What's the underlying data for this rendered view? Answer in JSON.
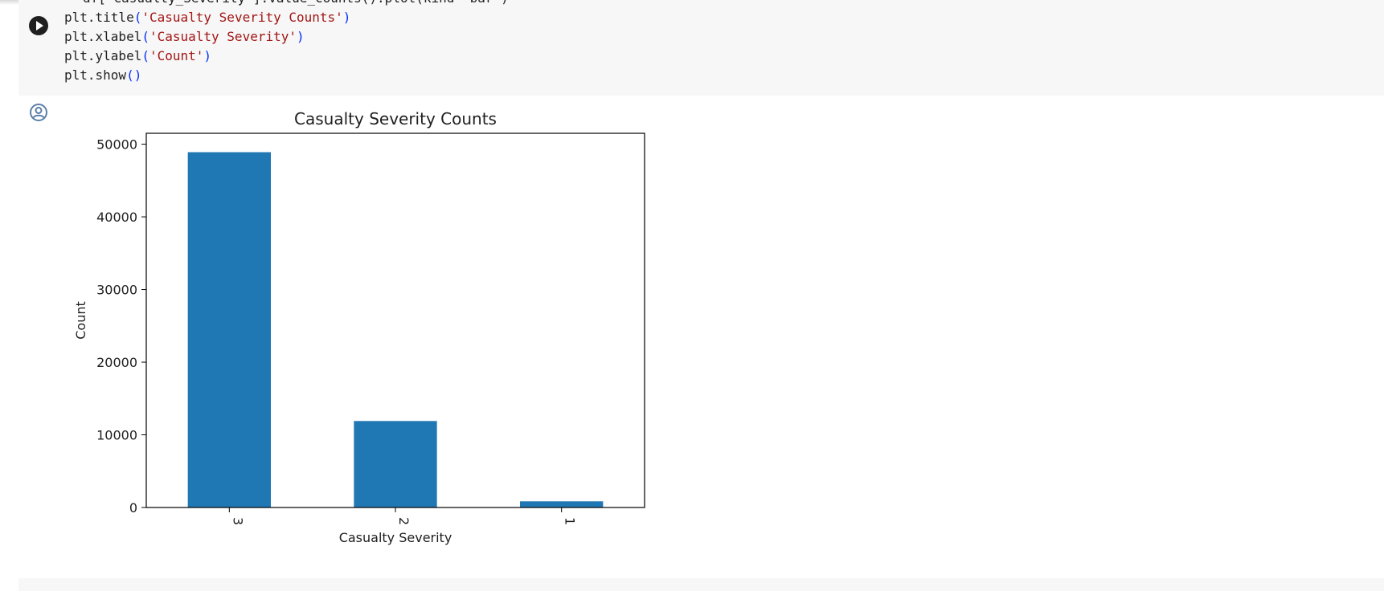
{
  "code_cell": {
    "clipped_line": "df['Casualty_Severity'].value_counts().plot(kind='bar')",
    "lines": [
      {
        "fn": "plt.title",
        "arg": "'Casualty Severity Counts'"
      },
      {
        "fn": "plt.xlabel",
        "arg": "'Casualty Severity'"
      },
      {
        "fn": "plt.ylabel",
        "arg": "'Count'"
      },
      {
        "fn": "plt.show",
        "arg": ""
      }
    ],
    "run_icon": "play-circle-icon"
  },
  "output": {
    "icon": "user-circle-icon"
  },
  "colors": {
    "bar": "#1f77b4",
    "axis": "#000000",
    "cell_background": "#f7f7f7",
    "string": "#a31515",
    "paren": "#0431fa"
  },
  "chart_data": {
    "type": "bar",
    "title": "Casualty Severity Counts",
    "xlabel": "Casualty Severity",
    "ylabel": "Count",
    "categories": [
      "3",
      "2",
      "1"
    ],
    "values": [
      48900,
      11900,
      850
    ],
    "ylim": [
      0,
      51500
    ],
    "yticks": [
      0,
      10000,
      20000,
      30000,
      40000,
      50000
    ],
    "ytick_labels": [
      "0",
      "10000",
      "20000",
      "30000",
      "40000",
      "50000"
    ],
    "xtick_rotation": 90,
    "grid": false,
    "legend": "none"
  }
}
